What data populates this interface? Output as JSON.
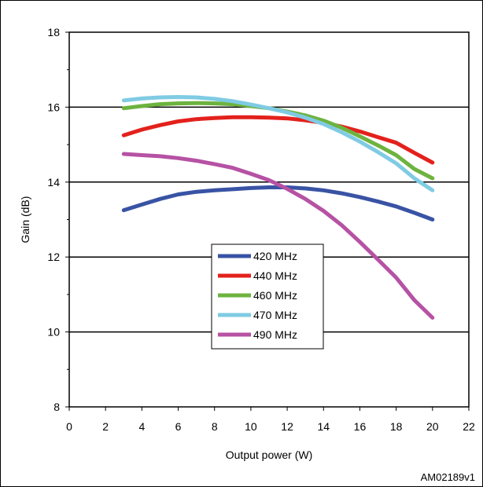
{
  "chart_data": {
    "type": "line",
    "title": "",
    "xlabel": "Output power (W)",
    "ylabel": "Gain (dB)",
    "xlim": [
      0,
      22
    ],
    "ylim": [
      8,
      18
    ],
    "x_ticks": [
      0,
      2,
      4,
      6,
      8,
      10,
      12,
      14,
      16,
      18,
      20,
      22
    ],
    "y_ticks": [
      8,
      10,
      12,
      14,
      16,
      18
    ],
    "grid": "horizontal",
    "legend_position": "center",
    "series": [
      {
        "name": "420 MHz",
        "color": "#3953a4",
        "x": [
          3,
          4,
          5,
          6,
          7,
          8,
          9,
          10,
          11,
          12,
          13,
          14,
          15,
          16,
          17,
          18,
          19,
          20
        ],
        "y": [
          13.25,
          13.4,
          13.55,
          13.67,
          13.74,
          13.78,
          13.81,
          13.84,
          13.86,
          13.86,
          13.83,
          13.78,
          13.7,
          13.6,
          13.48,
          13.35,
          13.18,
          13.0
        ]
      },
      {
        "name": "440 MHz",
        "color": "#e3211c",
        "x": [
          3,
          4,
          5,
          6,
          7,
          8,
          9,
          10,
          11,
          12,
          13,
          14,
          15,
          16,
          17,
          18,
          19,
          20
        ],
        "y": [
          15.25,
          15.4,
          15.52,
          15.62,
          15.68,
          15.71,
          15.73,
          15.73,
          15.72,
          15.7,
          15.65,
          15.58,
          15.48,
          15.35,
          15.2,
          15.05,
          14.78,
          14.52
        ]
      },
      {
        "name": "460 MHz",
        "color": "#6db33f",
        "x": [
          3,
          4,
          5,
          6,
          7,
          8,
          9,
          10,
          11,
          12,
          13,
          14,
          15,
          16,
          17,
          18,
          19,
          20
        ],
        "y": [
          15.97,
          16.03,
          16.08,
          16.1,
          16.11,
          16.1,
          16.08,
          16.03,
          15.97,
          15.88,
          15.78,
          15.64,
          15.45,
          15.22,
          14.98,
          14.72,
          14.35,
          14.1
        ]
      },
      {
        "name": "470 MHz",
        "color": "#7fcbe3",
        "x": [
          3,
          4,
          5,
          6,
          7,
          8,
          9,
          10,
          11,
          12,
          13,
          14,
          15,
          16,
          17,
          18,
          19,
          20
        ],
        "y": [
          16.18,
          16.23,
          16.26,
          16.27,
          16.26,
          16.22,
          16.16,
          16.07,
          15.97,
          15.86,
          15.72,
          15.55,
          15.33,
          15.08,
          14.8,
          14.5,
          14.1,
          13.78
        ]
      },
      {
        "name": "490 MHz",
        "color": "#b652a4",
        "x": [
          3,
          4,
          5,
          6,
          7,
          8,
          9,
          10,
          11,
          12,
          13,
          14,
          15,
          16,
          17,
          18,
          19,
          20
        ],
        "y": [
          14.75,
          14.72,
          14.69,
          14.64,
          14.57,
          14.48,
          14.38,
          14.22,
          14.05,
          13.82,
          13.55,
          13.23,
          12.85,
          12.4,
          11.93,
          11.45,
          10.85,
          10.38
        ]
      }
    ]
  },
  "footnote": "AM02189v1"
}
